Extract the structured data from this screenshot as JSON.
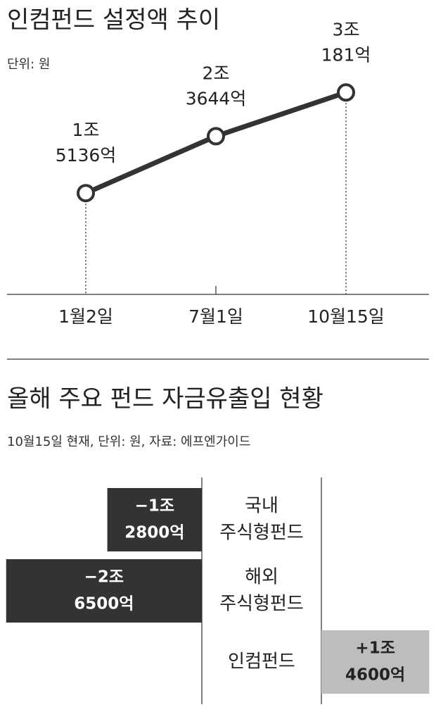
{
  "chart_data": [
    {
      "type": "line",
      "title": "인컴펀드 설정액 추이",
      "subtitle": "단위: 원",
      "categories": [
        "1월2일",
        "7월1일",
        "10월15일"
      ],
      "values": [
        1513600000000,
        2364400000000,
        3018100000000
      ],
      "value_labels": [
        [
          "1조",
          "5136억"
        ],
        [
          "2조",
          "3644억"
        ],
        [
          "3조",
          "181억"
        ]
      ],
      "color": "#333333"
    },
    {
      "type": "hbar",
      "title": "올해 주요 펀드 자금유출입 현황",
      "subtitle": "10월15일 현재, 단위: 원, 자료: 에프엔가이드",
      "categories": [
        [
          "국내",
          "주식형펀드"
        ],
        [
          "해외",
          "주식형펀드"
        ],
        [
          "인컴펀드"
        ]
      ],
      "values": [
        -1280000000000,
        -2650000000000,
        1460000000000
      ],
      "value_labels": [
        [
          "−1조",
          "2800억"
        ],
        [
          "−2조",
          "6500억"
        ],
        [
          "+1조",
          "4600억"
        ]
      ],
      "colors": {
        "negative": "#333333",
        "positive": "#bcbdbf"
      }
    }
  ]
}
